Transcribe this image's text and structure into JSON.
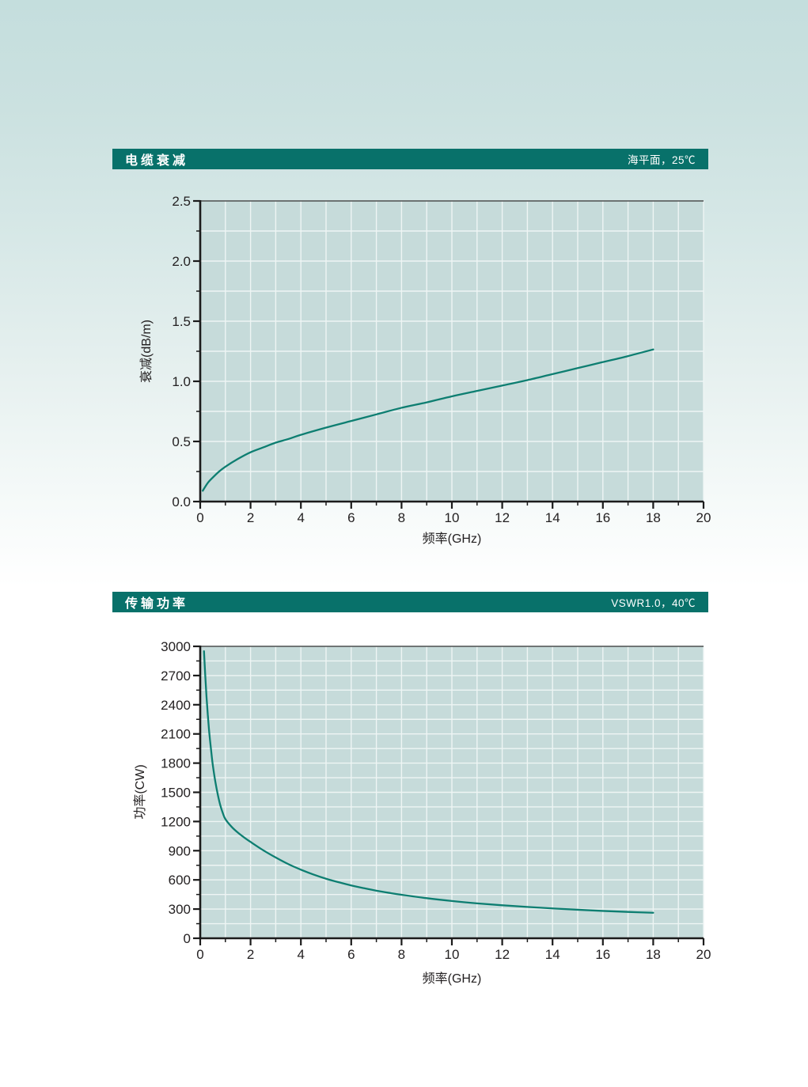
{
  "page": {
    "bg_top_color": "#c4dedd",
    "bg_bottom_color": "#ffffff"
  },
  "sections": [
    {
      "header": {
        "title": "电缆衰减",
        "note": "海平面，25℃",
        "bg_color": "#08716a",
        "text_color": "#ffffff"
      }
    },
    {
      "header": {
        "title": "传输功率",
        "note": "VSWR1.0，40℃",
        "bg_color": "#08716a",
        "text_color": "#ffffff"
      }
    }
  ],
  "chart_data": [
    {
      "type": "line",
      "title": "电缆衰减",
      "condition": "海平面，25℃",
      "xlabel": "频率(GHz)",
      "ylabel": "衰减(dB/m)",
      "xlim": [
        0,
        20
      ],
      "ylim": [
        0,
        2.5
      ],
      "grid": true,
      "legend_position": "none",
      "grid_x_step": 1,
      "grid_y_step": 0.25,
      "x_minor_step": 1,
      "y_minor_step": 0.25,
      "x_ticks": {
        "values": [
          0,
          2,
          4,
          6,
          8,
          10,
          12,
          14,
          16,
          18,
          20
        ],
        "labels": [
          "0",
          "2",
          "4",
          "6",
          "8",
          "10",
          "12",
          "14",
          "16",
          "18",
          "20"
        ]
      },
      "y_ticks": {
        "values": [
          0,
          0.5,
          1.0,
          1.5,
          2.0,
          2.5
        ],
        "labels": [
          "0.0",
          "0.5",
          "1.0",
          "1.5",
          "2.0",
          "2.5"
        ]
      },
      "colors": {
        "plot_bg": "#c6dbda",
        "grid": "#eef5f4",
        "line": "#0d7e71",
        "axis": "#1b1b1b"
      },
      "series": [
        {
          "name": "电缆衰减",
          "points": [
            [
              0.1,
              0.09
            ],
            [
              0.3,
              0.155
            ],
            [
              0.5,
              0.2
            ],
            [
              0.75,
              0.25
            ],
            [
              1,
              0.29
            ],
            [
              1.5,
              0.355
            ],
            [
              2,
              0.41
            ],
            [
              2.5,
              0.45
            ],
            [
              3,
              0.49
            ],
            [
              3.5,
              0.52
            ],
            [
              4,
              0.555
            ],
            [
              5,
              0.615
            ],
            [
              6,
              0.67
            ],
            [
              7,
              0.725
            ],
            [
              8,
              0.78
            ],
            [
              9,
              0.825
            ],
            [
              10,
              0.875
            ],
            [
              11,
              0.92
            ],
            [
              12,
              0.965
            ],
            [
              13,
              1.01
            ],
            [
              14,
              1.06
            ],
            [
              15,
              1.11
            ],
            [
              16,
              1.16
            ],
            [
              17,
              1.21
            ],
            [
              18,
              1.265
            ]
          ]
        }
      ]
    },
    {
      "type": "line",
      "title": "传输功率",
      "condition": "VSWR1.0，40℃",
      "xlabel": "频率(GHz)",
      "ylabel": "功率(CW)",
      "xlim": [
        0,
        20
      ],
      "ylim": [
        0,
        3000
      ],
      "grid": true,
      "legend_position": "none",
      "grid_x_step": 1,
      "grid_y_step": 150,
      "x_minor_step": 1,
      "y_minor_step": 150,
      "x_ticks": {
        "values": [
          0,
          2,
          4,
          6,
          8,
          10,
          12,
          14,
          16,
          18,
          20
        ],
        "labels": [
          "0",
          "2",
          "4",
          "6",
          "8",
          "10",
          "12",
          "14",
          "16",
          "18",
          "20"
        ]
      },
      "y_ticks": {
        "values": [
          0,
          300,
          600,
          900,
          1200,
          1500,
          1800,
          2100,
          2400,
          2700,
          3000
        ],
        "labels": [
          "0",
          "300",
          "600",
          "900",
          "1200",
          "1500",
          "1800",
          "2100",
          "2400",
          "2700",
          "3000"
        ]
      },
      "colors": {
        "plot_bg": "#c6dbda",
        "grid": "#eef5f4",
        "line": "#0d7e71",
        "axis": "#1b1b1b"
      },
      "series": [
        {
          "name": "传输功率",
          "points": [
            [
              0.15,
              2950
            ],
            [
              0.2,
              2700
            ],
            [
              0.25,
              2480
            ],
            [
              0.3,
              2300
            ],
            [
              0.35,
              2140
            ],
            [
              0.4,
              2010
            ],
            [
              0.45,
              1890
            ],
            [
              0.5,
              1780
            ],
            [
              0.6,
              1610
            ],
            [
              0.7,
              1475
            ],
            [
              0.8,
              1365
            ],
            [
              0.9,
              1285
            ],
            [
              1,
              1225
            ],
            [
              1.25,
              1145
            ],
            [
              1.5,
              1085
            ],
            [
              1.75,
              1035
            ],
            [
              2,
              990
            ],
            [
              2.5,
              905
            ],
            [
              3,
              830
            ],
            [
              3.5,
              762
            ],
            [
              4,
              705
            ],
            [
              4.5,
              655
            ],
            [
              5,
              612
            ],
            [
              5.5,
              576
            ],
            [
              6,
              543
            ],
            [
              6.5,
              515
            ],
            [
              7,
              489
            ],
            [
              7.5,
              467
            ],
            [
              8,
              447
            ],
            [
              9,
              412
            ],
            [
              10,
              383
            ],
            [
              11,
              359
            ],
            [
              12,
              339
            ],
            [
              13,
              322
            ],
            [
              14,
              307
            ],
            [
              15,
              293
            ],
            [
              16,
              281
            ],
            [
              17,
              271
            ],
            [
              18,
              262
            ]
          ]
        }
      ]
    }
  ]
}
